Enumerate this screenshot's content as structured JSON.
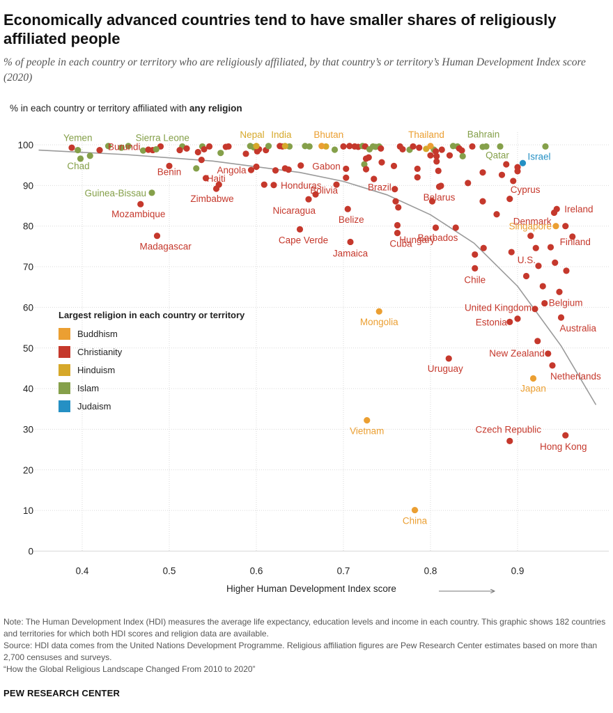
{
  "header": {
    "title": "Economically advanced countries tend to have smaller shares of religiously affiliated people",
    "subtitle": "% of people in each country or territory who are religiously affiliated, by that country’s or territory’s Human Development Index score (2020)",
    "ylabel_prefix": "% in each country or territory affiliated with ",
    "ylabel_bold": "any religion"
  },
  "colors": {
    "Buddhism": "#EB9F32",
    "Christianity": "#C5382C",
    "Hinduism": "#D6A82A",
    "Islam": "#85A04A",
    "Judaism": "#2590C4",
    "trend": "#9a9a9a",
    "grid": "#d9d9d9"
  },
  "legend": {
    "title": "Largest religion in each country or territory",
    "items": [
      "Buddhism",
      "Christianity",
      "Hinduism",
      "Islam",
      "Judaism"
    ]
  },
  "chart_data": {
    "type": "scatter",
    "xlabel": "Higher Human Development Index score",
    "ylabel": "% in each country or territory affiliated with any religion",
    "xlim": [
      0.35,
      0.99
    ],
    "ylim": [
      0,
      100
    ],
    "xticks": [
      "0.4",
      "0.5",
      "0.6",
      "0.7",
      "0.8",
      "0.9"
    ],
    "yticks": [
      "0",
      "10",
      "20",
      "30",
      "40",
      "50",
      "60",
      "70",
      "80",
      "90",
      "100"
    ],
    "grid": true,
    "legend_position": "left-middle",
    "trend_line": [
      [
        0.35,
        98.7
      ],
      [
        0.45,
        97.6
      ],
      [
        0.55,
        96.0
      ],
      [
        0.65,
        93.2
      ],
      [
        0.7,
        91.0
      ],
      [
        0.75,
        87.7
      ],
      [
        0.8,
        82.8
      ],
      [
        0.85,
        75.8
      ],
      [
        0.9,
        65.2
      ],
      [
        0.95,
        50.5
      ],
      [
        0.99,
        36.0
      ]
    ],
    "labeled_points": [
      {
        "name": "Yemen",
        "x": 0.395,
        "y": 98.7,
        "religion": "Islam"
      },
      {
        "name": "Chad",
        "x": 0.398,
        "y": 96.6,
        "religion": "Islam"
      },
      {
        "name": "Burundi",
        "x": 0.42,
        "y": 98.7,
        "religion": "Christianity"
      },
      {
        "name": "Sierra Leone",
        "x": 0.485,
        "y": 98.9,
        "religion": "Islam"
      },
      {
        "name": "Benin",
        "x": 0.5,
        "y": 94.8,
        "religion": "Christianity"
      },
      {
        "name": "Guinea-Bissau",
        "x": 0.48,
        "y": 88.2,
        "religion": "Islam"
      },
      {
        "name": "Mozambique",
        "x": 0.467,
        "y": 85.4,
        "religion": "Christianity"
      },
      {
        "name": "Madagascar",
        "x": 0.486,
        "y": 77.6,
        "religion": "Christianity"
      },
      {
        "name": "Angola",
        "x": 0.594,
        "y": 93.8,
        "religion": "Christianity"
      },
      {
        "name": "Haiti",
        "x": 0.557,
        "y": 90.2,
        "religion": "Christianity"
      },
      {
        "name": "Zimbabwe",
        "x": 0.554,
        "y": 89.2,
        "religion": "Christianity"
      },
      {
        "name": "Nepal",
        "x": 0.6,
        "y": 99.7,
        "religion": "Hinduism"
      },
      {
        "name": "India",
        "x": 0.633,
        "y": 99.7,
        "religion": "Hinduism"
      },
      {
        "name": "Honduras",
        "x": 0.62,
        "y": 90.1,
        "religion": "Christianity"
      },
      {
        "name": "Gabon",
        "x": 0.703,
        "y": 94.1,
        "religion": "Christianity"
      },
      {
        "name": "Bolivia",
        "x": 0.692,
        "y": 90.2,
        "religion": "Christianity"
      },
      {
        "name": "Nicaragua",
        "x": 0.66,
        "y": 86.6,
        "religion": "Christianity"
      },
      {
        "name": "Belize",
        "x": 0.705,
        "y": 84.2,
        "religion": "Christianity"
      },
      {
        "name": "Cape Verde",
        "x": 0.65,
        "y": 79.2,
        "religion": "Christianity"
      },
      {
        "name": "Jamaica",
        "x": 0.708,
        "y": 76.1,
        "religion": "Christianity"
      },
      {
        "name": "Bhutan",
        "x": 0.675,
        "y": 99.7,
        "religion": "Buddhism"
      },
      {
        "name": "Brazil",
        "x": 0.759,
        "y": 89.1,
        "religion": "Christianity"
      },
      {
        "name": "Cuba",
        "x": 0.762,
        "y": 78.3,
        "religion": "Christianity"
      },
      {
        "name": "Mongolia",
        "x": 0.741,
        "y": 59.0,
        "religion": "Buddhism"
      },
      {
        "name": "Vietnam",
        "x": 0.727,
        "y": 32.2,
        "religion": "Buddhism"
      },
      {
        "name": "China",
        "x": 0.782,
        "y": 10.1,
        "religion": "Buddhism"
      },
      {
        "name": "Thailand",
        "x": 0.8,
        "y": 99.7,
        "religion": "Buddhism"
      },
      {
        "name": "Belarus",
        "x": 0.81,
        "y": 89.7,
        "religion": "Christianity"
      },
      {
        "name": "Barbados",
        "x": 0.806,
        "y": 79.6,
        "religion": "Christianity"
      },
      {
        "name": "Hungary",
        "x": 0.829,
        "y": 79.6,
        "religion": "Christianity"
      },
      {
        "name": "Uruguay",
        "x": 0.821,
        "y": 47.4,
        "religion": "Christianity"
      },
      {
        "name": "Bahrain",
        "x": 0.864,
        "y": 99.6,
        "religion": "Islam"
      },
      {
        "name": "Qatar",
        "x": 0.88,
        "y": 99.6,
        "religion": "Islam"
      },
      {
        "name": "Israel",
        "x": 0.906,
        "y": 95.5,
        "religion": "Judaism"
      },
      {
        "name": "Cyprus",
        "x": 0.895,
        "y": 91.1,
        "religion": "Christianity"
      },
      {
        "name": "Chile",
        "x": 0.851,
        "y": 69.6,
        "religion": "Christianity"
      },
      {
        "name": "Denmark",
        "x": 0.942,
        "y": 83.3,
        "religion": "Christianity"
      },
      {
        "name": "Ireland",
        "x": 0.945,
        "y": 84.2,
        "religion": "Christianity"
      },
      {
        "name": "Singapore",
        "x": 0.944,
        "y": 80.0,
        "religion": "Buddhism"
      },
      {
        "name": "Finland",
        "x": 0.963,
        "y": 77.4,
        "religion": "Christianity"
      },
      {
        "name": "U.S.",
        "x": 0.924,
        "y": 70.2,
        "religion": "Christianity"
      },
      {
        "name": "Belgium",
        "x": 0.931,
        "y": 61.0,
        "religion": "Christianity"
      },
      {
        "name": "United Kingdom",
        "x": 0.92,
        "y": 59.6,
        "religion": "Christianity"
      },
      {
        "name": "Estonia",
        "x": 0.891,
        "y": 56.4,
        "religion": "Christianity"
      },
      {
        "name": "Australia",
        "x": 0.95,
        "y": 57.5,
        "religion": "Christianity"
      },
      {
        "name": "New Zealand",
        "x": 0.935,
        "y": 48.6,
        "religion": "Christianity"
      },
      {
        "name": "Netherlands",
        "x": 0.94,
        "y": 45.7,
        "religion": "Christianity"
      },
      {
        "name": "Japan",
        "x": 0.918,
        "y": 42.5,
        "religion": "Buddhism"
      },
      {
        "name": "Czech Republic",
        "x": 0.891,
        "y": 27.1,
        "religion": "Christianity"
      },
      {
        "name": "Hong Kong",
        "x": 0.955,
        "y": 28.5,
        "religion": "Christianity"
      }
    ],
    "unlabeled_points": [
      {
        "x": 0.388,
        "y": 99.3,
        "religion": "Christianity"
      },
      {
        "x": 0.409,
        "y": 97.3,
        "religion": "Islam"
      },
      {
        "x": 0.43,
        "y": 99.7,
        "religion": "Islam"
      },
      {
        "x": 0.445,
        "y": 99.3,
        "religion": "Islam"
      },
      {
        "x": 0.453,
        "y": 99.7,
        "religion": "Islam"
      },
      {
        "x": 0.47,
        "y": 98.6,
        "religion": "Islam"
      },
      {
        "x": 0.476,
        "y": 98.8,
        "religion": "Christianity"
      },
      {
        "x": 0.481,
        "y": 98.7,
        "religion": "Christianity"
      },
      {
        "x": 0.49,
        "y": 99.6,
        "religion": "Christianity"
      },
      {
        "x": 0.515,
        "y": 99.6,
        "religion": "Islam"
      },
      {
        "x": 0.512,
        "y": 98.7,
        "religion": "Christianity"
      },
      {
        "x": 0.52,
        "y": 99.1,
        "religion": "Christianity"
      },
      {
        "x": 0.533,
        "y": 98.2,
        "religion": "Christianity"
      },
      {
        "x": 0.538,
        "y": 99.6,
        "religion": "Islam"
      },
      {
        "x": 0.54,
        "y": 98.9,
        "religion": "Christianity"
      },
      {
        "x": 0.546,
        "y": 99.6,
        "religion": "Christianity"
      },
      {
        "x": 0.531,
        "y": 94.2,
        "religion": "Islam"
      },
      {
        "x": 0.537,
        "y": 96.3,
        "religion": "Christianity"
      },
      {
        "x": 0.542,
        "y": 91.8,
        "religion": "Christianity"
      },
      {
        "x": 0.559,
        "y": 98.0,
        "religion": "Islam"
      },
      {
        "x": 0.565,
        "y": 99.5,
        "religion": "Christianity"
      },
      {
        "x": 0.568,
        "y": 99.6,
        "religion": "Christianity"
      },
      {
        "x": 0.588,
        "y": 97.8,
        "religion": "Christianity"
      },
      {
        "x": 0.593,
        "y": 99.7,
        "religion": "Islam"
      },
      {
        "x": 0.597,
        "y": 99.4,
        "religion": "Islam"
      },
      {
        "x": 0.601,
        "y": 98.4,
        "religion": "Christianity"
      },
      {
        "x": 0.603,
        "y": 98.9,
        "religion": "Christianity"
      },
      {
        "x": 0.6,
        "y": 94.6,
        "religion": "Christianity"
      },
      {
        "x": 0.611,
        "y": 98.7,
        "religion": "Christianity"
      },
      {
        "x": 0.614,
        "y": 99.7,
        "religion": "Islam"
      },
      {
        "x": 0.609,
        "y": 90.2,
        "religion": "Christianity"
      },
      {
        "x": 0.622,
        "y": 93.7,
        "religion": "Christianity"
      },
      {
        "x": 0.627,
        "y": 99.7,
        "religion": "Christianity"
      },
      {
        "x": 0.63,
        "y": 99.6,
        "religion": "Christianity"
      },
      {
        "x": 0.633,
        "y": 94.2,
        "religion": "Christianity"
      },
      {
        "x": 0.637,
        "y": 93.9,
        "religion": "Christianity"
      },
      {
        "x": 0.638,
        "y": 99.6,
        "religion": "Islam"
      },
      {
        "x": 0.651,
        "y": 94.9,
        "religion": "Christianity"
      },
      {
        "x": 0.656,
        "y": 99.7,
        "religion": "Islam"
      },
      {
        "x": 0.661,
        "y": 99.6,
        "religion": "Islam"
      },
      {
        "x": 0.668,
        "y": 87.8,
        "religion": "Christianity"
      },
      {
        "x": 0.68,
        "y": 99.6,
        "religion": "Hinduism"
      },
      {
        "x": 0.69,
        "y": 98.8,
        "religion": "Islam"
      },
      {
        "x": 0.703,
        "y": 91.9,
        "religion": "Christianity"
      },
      {
        "x": 0.707,
        "y": 99.7,
        "religion": "Christianity"
      },
      {
        "x": 0.713,
        "y": 99.6,
        "religion": "Christianity"
      },
      {
        "x": 0.7,
        "y": 99.6,
        "religion": "Christianity"
      },
      {
        "x": 0.717,
        "y": 99.5,
        "religion": "Christianity"
      },
      {
        "x": 0.722,
        "y": 99.7,
        "religion": "Islam"
      },
      {
        "x": 0.725,
        "y": 99.6,
        "religion": "Christianity"
      },
      {
        "x": 0.724,
        "y": 95.2,
        "religion": "Islam"
      },
      {
        "x": 0.726,
        "y": 96.6,
        "religion": "Christianity"
      },
      {
        "x": 0.729,
        "y": 96.9,
        "religion": "Christianity"
      },
      {
        "x": 0.726,
        "y": 94.0,
        "religion": "Christianity"
      },
      {
        "x": 0.73,
        "y": 98.9,
        "religion": "Islam"
      },
      {
        "x": 0.734,
        "y": 99.6,
        "religion": "Islam"
      },
      {
        "x": 0.737,
        "y": 99.5,
        "religion": "Islam"
      },
      {
        "x": 0.741,
        "y": 99.6,
        "religion": "Islam"
      },
      {
        "x": 0.743,
        "y": 99.1,
        "religion": "Christianity"
      },
      {
        "x": 0.735,
        "y": 91.6,
        "religion": "Christianity"
      },
      {
        "x": 0.744,
        "y": 95.7,
        "religion": "Christianity"
      },
      {
        "x": 0.758,
        "y": 94.8,
        "religion": "Christianity"
      },
      {
        "x": 0.76,
        "y": 86.1,
        "religion": "Christianity"
      },
      {
        "x": 0.763,
        "y": 84.6,
        "religion": "Christianity"
      },
      {
        "x": 0.762,
        "y": 80.2,
        "religion": "Christianity"
      },
      {
        "x": 0.765,
        "y": 99.6,
        "religion": "Christianity"
      },
      {
        "x": 0.768,
        "y": 98.9,
        "religion": "Christianity"
      },
      {
        "x": 0.776,
        "y": 98.8,
        "religion": "Islam"
      },
      {
        "x": 0.78,
        "y": 99.6,
        "religion": "Christianity"
      },
      {
        "x": 0.787,
        "y": 99.3,
        "religion": "Christianity"
      },
      {
        "x": 0.785,
        "y": 94.1,
        "religion": "Christianity"
      },
      {
        "x": 0.785,
        "y": 92.0,
        "religion": "Christianity"
      },
      {
        "x": 0.795,
        "y": 99.0,
        "religion": "Hinduism"
      },
      {
        "x": 0.8,
        "y": 97.4,
        "religion": "Christianity"
      },
      {
        "x": 0.804,
        "y": 98.8,
        "religion": "Islam"
      },
      {
        "x": 0.806,
        "y": 98.4,
        "religion": "Christianity"
      },
      {
        "x": 0.807,
        "y": 97.2,
        "religion": "Christianity"
      },
      {
        "x": 0.802,
        "y": 86.1,
        "religion": "Christianity"
      },
      {
        "x": 0.807,
        "y": 95.9,
        "religion": "Christianity"
      },
      {
        "x": 0.809,
        "y": 93.6,
        "religion": "Christianity"
      },
      {
        "x": 0.812,
        "y": 89.9,
        "religion": "Christianity"
      },
      {
        "x": 0.813,
        "y": 98.8,
        "religion": "Christianity"
      },
      {
        "x": 0.822,
        "y": 97.4,
        "religion": "Christianity"
      },
      {
        "x": 0.826,
        "y": 99.7,
        "religion": "Islam"
      },
      {
        "x": 0.831,
        "y": 99.6,
        "religion": "Islam"
      },
      {
        "x": 0.833,
        "y": 99.1,
        "religion": "Christianity"
      },
      {
        "x": 0.836,
        "y": 98.6,
        "religion": "Christianity"
      },
      {
        "x": 0.837,
        "y": 97.2,
        "religion": "Islam"
      },
      {
        "x": 0.843,
        "y": 90.6,
        "religion": "Christianity"
      },
      {
        "x": 0.848,
        "y": 99.6,
        "religion": "Christianity"
      },
      {
        "x": 0.851,
        "y": 73.0,
        "religion": "Christianity"
      },
      {
        "x": 0.86,
        "y": 99.5,
        "religion": "Islam"
      },
      {
        "x": 0.86,
        "y": 93.2,
        "religion": "Christianity"
      },
      {
        "x": 0.86,
        "y": 86.1,
        "religion": "Christianity"
      },
      {
        "x": 0.861,
        "y": 74.6,
        "religion": "Christianity"
      },
      {
        "x": 0.876,
        "y": 82.9,
        "religion": "Christianity"
      },
      {
        "x": 0.882,
        "y": 92.6,
        "religion": "Christianity"
      },
      {
        "x": 0.887,
        "y": 95.2,
        "religion": "Christianity"
      },
      {
        "x": 0.891,
        "y": 86.7,
        "religion": "Christianity"
      },
      {
        "x": 0.893,
        "y": 73.6,
        "religion": "Christianity"
      },
      {
        "x": 0.9,
        "y": 93.5,
        "religion": "Christianity"
      },
      {
        "x": 0.9,
        "y": 94.5,
        "religion": "Christianity"
      },
      {
        "x": 0.9,
        "y": 57.2,
        "religion": "Christianity"
      },
      {
        "x": 0.91,
        "y": 67.7,
        "religion": "Christianity"
      },
      {
        "x": 0.915,
        "y": 77.6,
        "religion": "Christianity"
      },
      {
        "x": 0.921,
        "y": 74.6,
        "religion": "Christianity"
      },
      {
        "x": 0.923,
        "y": 51.7,
        "religion": "Christianity"
      },
      {
        "x": 0.929,
        "y": 65.2,
        "religion": "Christianity"
      },
      {
        "x": 0.932,
        "y": 99.6,
        "religion": "Islam"
      },
      {
        "x": 0.938,
        "y": 74.8,
        "religion": "Christianity"
      },
      {
        "x": 0.943,
        "y": 71.0,
        "religion": "Christianity"
      },
      {
        "x": 0.948,
        "y": 63.8,
        "religion": "Christianity"
      },
      {
        "x": 0.955,
        "y": 80.0,
        "religion": "Christianity"
      },
      {
        "x": 0.956,
        "y": 69.0,
        "religion": "Christianity"
      }
    ]
  },
  "notes": {
    "note": "Note: The Human Development Index (HDI) measures the average life expectancy, education levels and income in each country. This graphic shows 182 countries and territories for which both HDI scores and religion data are available.",
    "source": "Source: HDI data comes from the United Nations Development Programme. Religious affiliation figures are Pew Research Center estimates based on more than 2,700 censuses and surveys.",
    "report": "“How the Global Religious Landscape Changed From 2010 to 2020”"
  },
  "brand": "PEW RESEARCH CENTER"
}
